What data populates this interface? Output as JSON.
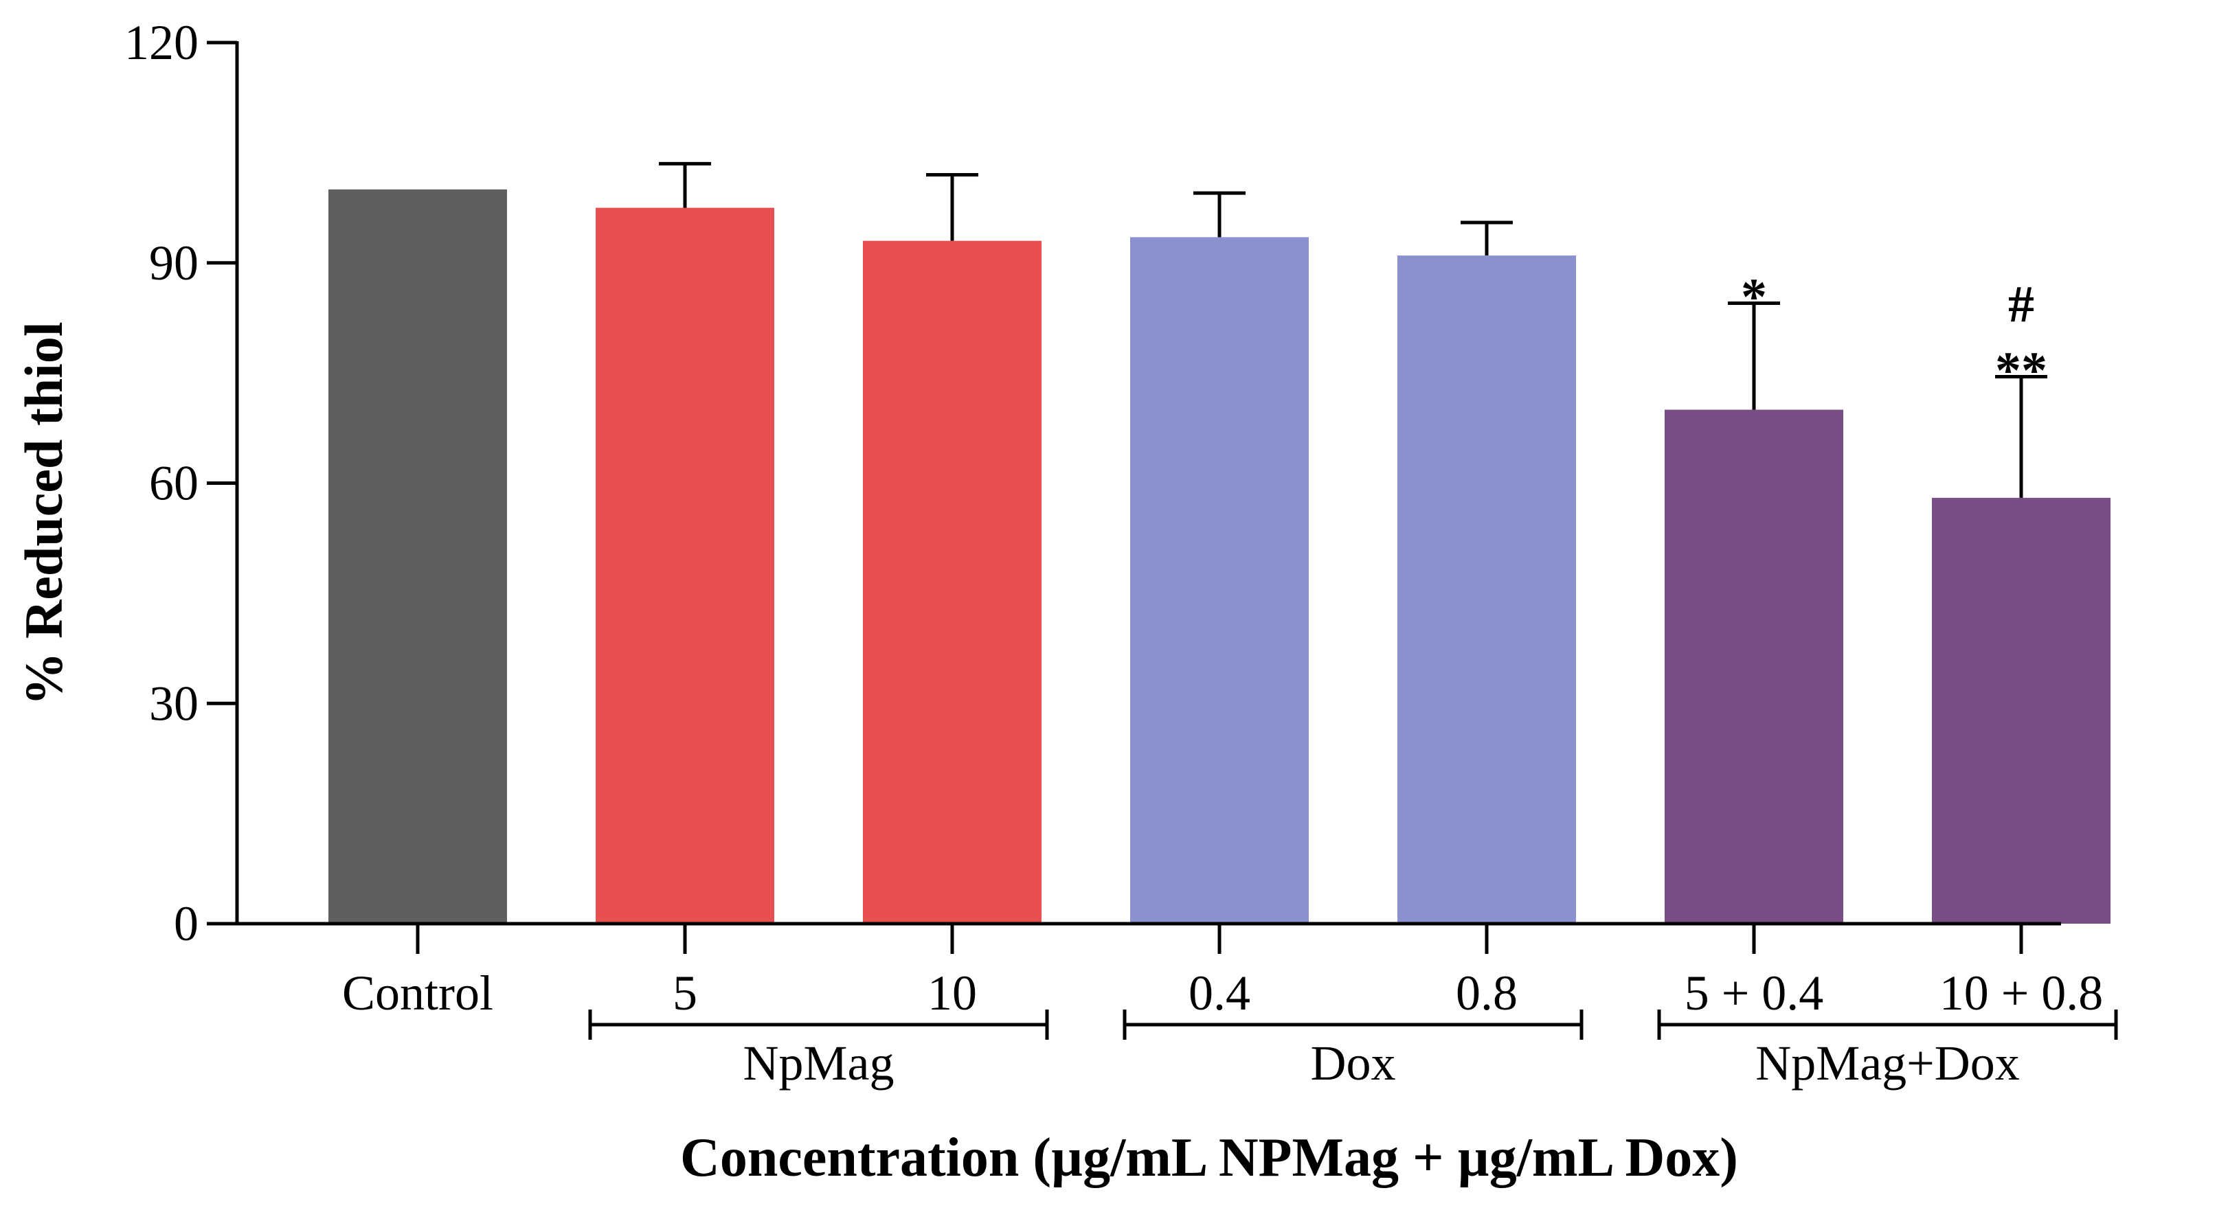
{
  "chart_data": {
    "type": "bar",
    "ylabel": "% Reduced thiol",
    "xlabel": "Concentration (µg/mL NPMag + µg/mL Dox)",
    "ylim": [
      0,
      120
    ],
    "yticks": [
      "0",
      "30",
      "60",
      "90",
      "120"
    ],
    "categories": [
      "Control",
      "5",
      "10",
      "0.4",
      "0.8",
      "5 + 0.4",
      "10 + 0.8"
    ],
    "values": [
      100,
      97.5,
      93,
      93.5,
      91,
      70,
      58
    ],
    "errors": [
      0,
      6,
      9,
      6,
      4.5,
      14.5,
      16.5
    ],
    "colors": [
      "#5f5f5f",
      "#e84f50",
      "#e84f50",
      "#8b91cf",
      "#8b91cf",
      "#7a4d89",
      "#7a4d89"
    ],
    "annotations": [
      {
        "category": "5 + 0.4",
        "lines": [
          "*"
        ]
      },
      {
        "category": "10 + 0.8",
        "lines": [
          "#",
          "**"
        ]
      }
    ],
    "groups": [
      {
        "label": "NpMag",
        "categories": [
          "5",
          "10"
        ]
      },
      {
        "label": "Dox",
        "categories": [
          "0.4",
          "0.8"
        ]
      },
      {
        "label": "NpMag+Dox",
        "categories": [
          "5 + 0.4",
          "10 + 0.8"
        ]
      }
    ],
    "grid": false,
    "legend": "none"
  }
}
